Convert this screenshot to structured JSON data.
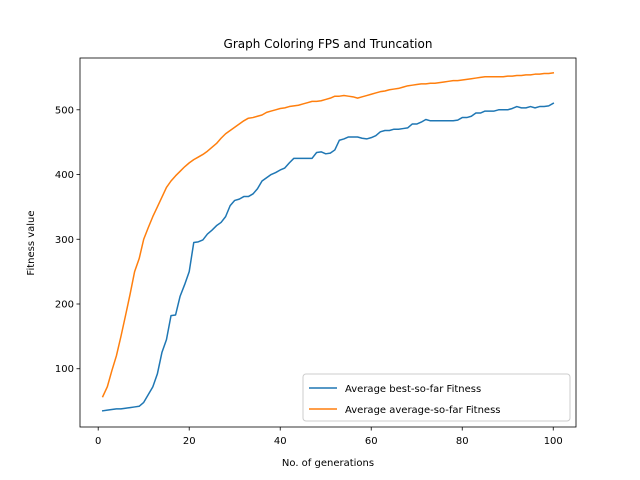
{
  "chart_data": {
    "type": "line",
    "title": "Graph Coloring FPS and Truncation",
    "xlabel": "No. of generations",
    "ylabel": "Fitness value",
    "xlim": [
      -4,
      105
    ],
    "ylim": [
      10,
      580
    ],
    "xticks": [
      0,
      20,
      40,
      60,
      80,
      100
    ],
    "yticks": [
      100,
      200,
      300,
      400,
      500
    ],
    "grid": false,
    "legend_position": "lower-right",
    "series": [
      {
        "name": "Average best-so-far Fitness",
        "color": "#1f77b4",
        "x": [
          1,
          2,
          3,
          4,
          5,
          6,
          7,
          8,
          9,
          10,
          11,
          12,
          13,
          14,
          15,
          16,
          17,
          18,
          19,
          20,
          21,
          22,
          23,
          24,
          25,
          26,
          27,
          28,
          29,
          30,
          31,
          32,
          33,
          34,
          35,
          36,
          37,
          38,
          39,
          40,
          41,
          42,
          43,
          44,
          45,
          46,
          47,
          48,
          49,
          50,
          51,
          52,
          53,
          54,
          55,
          56,
          57,
          58,
          59,
          60,
          61,
          62,
          63,
          64,
          65,
          66,
          67,
          68,
          69,
          70,
          71,
          72,
          73,
          74,
          75,
          76,
          77,
          78,
          79,
          80,
          81,
          82,
          83,
          84,
          85,
          86,
          87,
          88,
          89,
          90,
          91,
          92,
          93,
          94,
          95,
          96,
          97,
          98,
          99,
          100
        ],
        "y": [
          35,
          36,
          37,
          38,
          38,
          39,
          40,
          41,
          42,
          48,
          60,
          72,
          92,
          125,
          145,
          182,
          183,
          212,
          230,
          250,
          295,
          296,
          299,
          308,
          314,
          321,
          326,
          335,
          352,
          360,
          362,
          366,
          366,
          370,
          378,
          390,
          395,
          400,
          403,
          407,
          410,
          418,
          425,
          425,
          425,
          425,
          425,
          434,
          435,
          432,
          433,
          438,
          453,
          455,
          458,
          458,
          458,
          456,
          455,
          457,
          460,
          466,
          468,
          468,
          470,
          470,
          471,
          472,
          478,
          478,
          481,
          485,
          483,
          483,
          483,
          483,
          483,
          483,
          484,
          488,
          488,
          490,
          495,
          495,
          498,
          498,
          498,
          500,
          500,
          500,
          502,
          505,
          503,
          503,
          505,
          503,
          505,
          505,
          506,
          510
        ]
      },
      {
        "name": "Average average-so-far Fitness",
        "color": "#ff7f0e",
        "x": [
          1,
          2,
          3,
          4,
          5,
          6,
          7,
          8,
          9,
          10,
          11,
          12,
          13,
          14,
          15,
          16,
          17,
          18,
          19,
          20,
          21,
          22,
          23,
          24,
          25,
          26,
          27,
          28,
          29,
          30,
          31,
          32,
          33,
          34,
          35,
          36,
          37,
          38,
          39,
          40,
          41,
          42,
          43,
          44,
          45,
          46,
          47,
          48,
          49,
          50,
          51,
          52,
          53,
          54,
          55,
          56,
          57,
          58,
          59,
          60,
          61,
          62,
          63,
          64,
          65,
          66,
          67,
          68,
          69,
          70,
          71,
          72,
          73,
          74,
          75,
          76,
          77,
          78,
          79,
          80,
          81,
          82,
          83,
          84,
          85,
          86,
          87,
          88,
          89,
          90,
          91,
          92,
          93,
          94,
          95,
          96,
          97,
          98,
          99,
          100
        ],
        "y": [
          57,
          72,
          97,
          120,
          150,
          182,
          215,
          250,
          270,
          300,
          318,
          335,
          350,
          365,
          380,
          390,
          398,
          405,
          412,
          418,
          423,
          427,
          431,
          436,
          442,
          448,
          456,
          463,
          468,
          473,
          478,
          483,
          487,
          488,
          490,
          492,
          496,
          498,
          500,
          502,
          503,
          505,
          506,
          507,
          509,
          511,
          513,
          513,
          514,
          516,
          518,
          521,
          521,
          522,
          521,
          520,
          518,
          520,
          522,
          524,
          526,
          528,
          529,
          531,
          532,
          533,
          535,
          537,
          538,
          539,
          540,
          540,
          541,
          541,
          542,
          543,
          544,
          545,
          545,
          546,
          547,
          548,
          549,
          550,
          551,
          551,
          551,
          551,
          551,
          552,
          552,
          553,
          553,
          554,
          554,
          555,
          555,
          556,
          556,
          557
        ]
      }
    ]
  }
}
